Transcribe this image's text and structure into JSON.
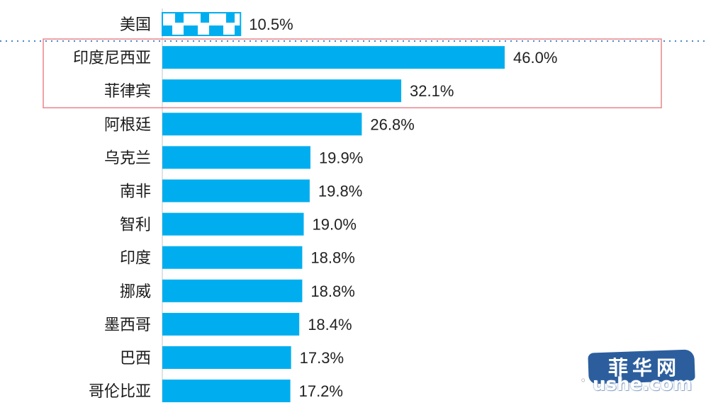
{
  "chart_data": {
    "type": "bar",
    "orientation": "horizontal",
    "categories": [
      "美国",
      "印度尼西亚",
      "菲律宾",
      "阿根廷",
      "乌克兰",
      "南非",
      "智利",
      "印度",
      "挪威",
      "墨西哥",
      "巴西",
      "哥伦比亚"
    ],
    "values": [
      10.5,
      46.0,
      32.1,
      26.8,
      19.9,
      19.8,
      19.0,
      18.8,
      18.8,
      18.4,
      17.3,
      17.2
    ],
    "value_labels": [
      "10.5%",
      "46.0%",
      "32.1%",
      "26.8%",
      "19.9%",
      "19.8%",
      "19.0%",
      "18.8%",
      "18.8%",
      "18.4%",
      "17.3%",
      "17.2%"
    ],
    "unit": "%",
    "highlighted_categories": [
      "印度尼西亚",
      "菲律宾"
    ],
    "patterned_categories": [
      "美国"
    ],
    "xlim": [
      0,
      50
    ],
    "grid": false,
    "colors": {
      "bar": "#00aeef",
      "highlight_box": "#e8868c",
      "divider": "#4a86c8",
      "axis": "#d9d9d9"
    }
  },
  "watermark": {
    "chinese": "菲华网",
    "english": "ushe.com"
  }
}
